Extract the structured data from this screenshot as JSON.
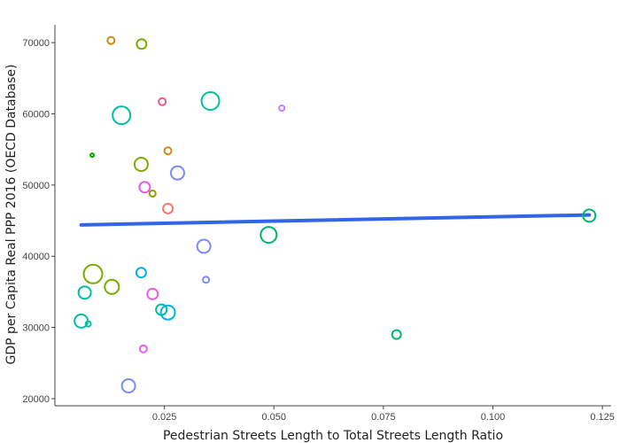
{
  "chart_data": {
    "type": "scatter",
    "title": "",
    "xlabel": "Pedestrian Streets Length to Total Streets Length Ratio",
    "ylabel": "GDP per Capita Real PPP 2016 (OECD Database)",
    "xlim": [
      0,
      0.127
    ],
    "ylim": [
      19000,
      72500
    ],
    "x_ticks": [
      0.025,
      0.05,
      0.075,
      0.1,
      0.125
    ],
    "x_tick_labels": [
      "0.025",
      "0.050",
      "0.075",
      "0.100",
      "0.125"
    ],
    "y_ticks": [
      20000,
      30000,
      40000,
      50000,
      60000,
      70000
    ],
    "y_tick_labels": [
      "20000",
      "30000",
      "40000",
      "50000",
      "60000",
      "70000"
    ],
    "grid": false,
    "legend": "none",
    "points": [
      {
        "x": 0.0128,
        "y": 70300,
        "size": 4,
        "color": "#d4880f"
      },
      {
        "x": 0.0198,
        "y": 69800,
        "size": 5.5,
        "color": "#7caa00"
      },
      {
        "x": 0.0245,
        "y": 61700,
        "size": 4,
        "color": "#f0578a"
      },
      {
        "x": 0.0355,
        "y": 61800,
        "size": 10,
        "color": "#00bfa0"
      },
      {
        "x": 0.0152,
        "y": 59800,
        "size": 10,
        "color": "#00bfa0"
      },
      {
        "x": 0.0518,
        "y": 60800,
        "size": 3,
        "color": "#c77cff"
      },
      {
        "x": 0.0085,
        "y": 54200,
        "size": 2,
        "color": "#00a800"
      },
      {
        "x": 0.0258,
        "y": 54800,
        "size": 4,
        "color": "#d4880f"
      },
      {
        "x": 0.0197,
        "y": 52900,
        "size": 7.5,
        "color": "#7caa00"
      },
      {
        "x": 0.028,
        "y": 51700,
        "size": 7.5,
        "color": "#7b8cf0"
      },
      {
        "x": 0.0205,
        "y": 49700,
        "size": 6,
        "color": "#e85ee0"
      },
      {
        "x": 0.0223,
        "y": 48800,
        "size": 3.5,
        "color": "#8c9c00"
      },
      {
        "x": 0.0258,
        "y": 46700,
        "size": 5.5,
        "color": "#f87a6e"
      },
      {
        "x": 0.122,
        "y": 45700,
        "size": 7,
        "color": "#00b86b"
      },
      {
        "x": 0.0488,
        "y": 43000,
        "size": 9,
        "color": "#00b86b"
      },
      {
        "x": 0.034,
        "y": 41400,
        "size": 7.5,
        "color": "#7b8cf0"
      },
      {
        "x": 0.0087,
        "y": 37500,
        "size": 10.5,
        "color": "#7caa00"
      },
      {
        "x": 0.0197,
        "y": 37700,
        "size": 5.5,
        "color": "#00b2e0"
      },
      {
        "x": 0.0345,
        "y": 36700,
        "size": 3.5,
        "color": "#7b8cf0"
      },
      {
        "x": 0.013,
        "y": 35700,
        "size": 8,
        "color": "#7caa00"
      },
      {
        "x": 0.0068,
        "y": 34900,
        "size": 7,
        "color": "#00bfa0"
      },
      {
        "x": 0.0223,
        "y": 34700,
        "size": 6,
        "color": "#e85ee0"
      },
      {
        "x": 0.0243,
        "y": 32500,
        "size": 6,
        "color": "#00bfa0"
      },
      {
        "x": 0.0258,
        "y": 32100,
        "size": 8,
        "color": "#00b2e0"
      },
      {
        "x": 0.006,
        "y": 30900,
        "size": 7.5,
        "color": "#00bfa0"
      },
      {
        "x": 0.0076,
        "y": 30500,
        "size": 3,
        "color": "#00bfa0"
      },
      {
        "x": 0.078,
        "y": 29000,
        "size": 5,
        "color": "#00b86b"
      },
      {
        "x": 0.0202,
        "y": 27000,
        "size": 4,
        "color": "#e85ee0"
      },
      {
        "x": 0.0168,
        "y": 21800,
        "size": 7.5,
        "color": "#7b8cf0"
      }
    ],
    "fit_line": {
      "x": [
        0.006,
        0.122
      ],
      "y": [
        44400,
        45800
      ],
      "color": "#3366e6"
    }
  }
}
